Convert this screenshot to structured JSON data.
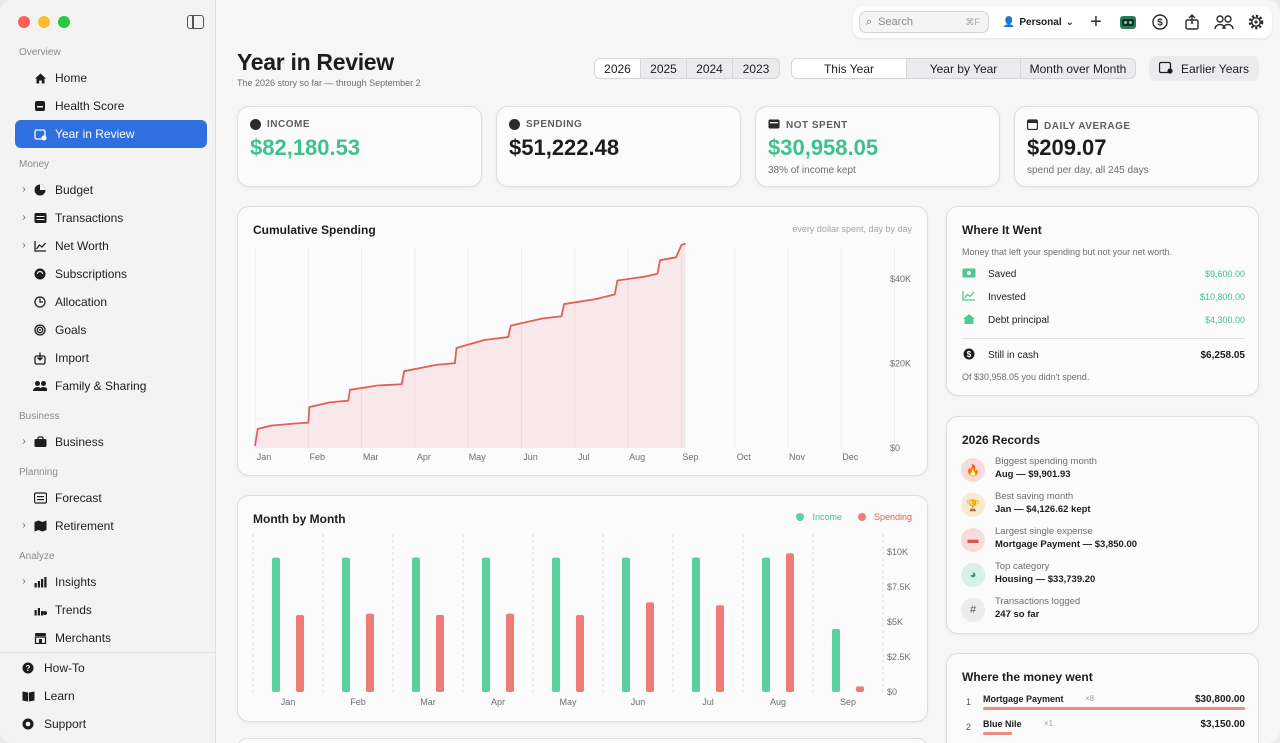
{
  "sidebar": {
    "sections": {
      "overview": "Overview",
      "money": "Money",
      "business": "Business",
      "planning": "Planning",
      "analyze": "Analyze"
    },
    "items": {
      "home": "Home",
      "health": "Health Score",
      "review": "Year in Review",
      "budget": "Budget",
      "transactions": "Transactions",
      "networth": "Net Worth",
      "subscriptions": "Subscriptions",
      "allocation": "Allocation",
      "goals": "Goals",
      "import": "Import",
      "family": "Family & Sharing",
      "business": "Business",
      "forecast": "Forecast",
      "retirement": "Retirement",
      "insights": "Insights",
      "trends": "Trends",
      "merchants": "Merchants"
    },
    "bottom": {
      "howto": "How-To",
      "learn": "Learn",
      "support": "Support"
    }
  },
  "toolbar": {
    "search_placeholder": "Search",
    "search_shortcut": "⌘F",
    "profile": "Personal"
  },
  "header": {
    "title": "Year in Review",
    "subtitle": "The 2026 story so far — through September 2",
    "years": [
      "2026",
      "2025",
      "2024",
      "2023"
    ],
    "selected_year": "2026",
    "views": [
      "This Year",
      "Year by Year",
      "Month over Month"
    ],
    "selected_view": "This Year",
    "earlier_years": "Earlier Years"
  },
  "stats": [
    {
      "label": "INCOME",
      "value": "$82,180.53",
      "sub": "",
      "color": "#3ec28b"
    },
    {
      "label": "SPENDING",
      "value": "$51,222.48",
      "sub": "",
      "color": "#1d1d1f"
    },
    {
      "label": "NOT SPENT",
      "value": "$30,958.05",
      "sub": "38% of income kept",
      "color": "#3ec28b"
    },
    {
      "label": "DAILY AVERAGE",
      "value": "$209.07",
      "sub": "spend per day, all 245 days",
      "color": "#1d1d1f"
    }
  ],
  "cumulative": {
    "title": "Cumulative Spending",
    "note": "every dollar spent, day by day"
  },
  "monthly": {
    "title": "Month by Month",
    "legend_income": "Income",
    "legend_spending": "Spending"
  },
  "chart_data": [
    {
      "type": "area",
      "title": "Cumulative Spending",
      "x_ticks": [
        "Jan",
        "Feb",
        "Mar",
        "Apr",
        "May",
        "Jun",
        "Jul",
        "Aug",
        "Sep",
        "Oct",
        "Nov",
        "Dec"
      ],
      "y_ticks": [
        "$0",
        "$20K",
        "$40K"
      ],
      "ylim": [
        0,
        50000
      ],
      "x_unit": "month",
      "series": [
        {
          "values": [
            [
              0,
              500
            ],
            [
              0.05,
              4500
            ],
            [
              0.3,
              5300
            ],
            [
              0.75,
              5800
            ],
            [
              1.0,
              6000
            ],
            [
              1.02,
              9700
            ],
            [
              1.4,
              10800
            ],
            [
              1.75,
              11200
            ],
            [
              1.78,
              13800
            ],
            [
              2.3,
              14800
            ],
            [
              2.75,
              15100
            ],
            [
              2.8,
              18200
            ],
            [
              3.4,
              19700
            ],
            [
              3.75,
              20100
            ],
            [
              3.78,
              23700
            ],
            [
              4.3,
              25600
            ],
            [
              4.75,
              26300
            ],
            [
              4.8,
              29000
            ],
            [
              5.4,
              30700
            ],
            [
              5.75,
              31200
            ],
            [
              5.8,
              34100
            ],
            [
              6.4,
              35300
            ],
            [
              6.75,
              36400
            ],
            [
              6.8,
              39700
            ],
            [
              7.3,
              40600
            ],
            [
              7.55,
              41300
            ],
            [
              7.6,
              44500
            ],
            [
              7.9,
              45200
            ],
            [
              8.0,
              48100
            ],
            [
              8.08,
              48400
            ]
          ],
          "color": "#e0605a"
        }
      ]
    },
    {
      "type": "bar",
      "title": "Month by Month",
      "categories": [
        "Jan",
        "Feb",
        "Mar",
        "Apr",
        "May",
        "Jun",
        "Jul",
        "Aug",
        "Sep"
      ],
      "y_ticks": [
        "$0",
        "$2.5K",
        "$5K",
        "$7.5K",
        "$10K"
      ],
      "ylim": [
        0,
        11000
      ],
      "series": [
        {
          "name": "Income",
          "color": "#5ccf9f",
          "values": [
            9600,
            9600,
            9600,
            9600,
            9600,
            9600,
            9600,
            9600,
            4500
          ]
        },
        {
          "name": "Spending",
          "color": "#ee7b76",
          "values": [
            5500,
            5600,
            5500,
            5600,
            5500,
            6400,
            6200,
            9900,
            400
          ]
        }
      ]
    }
  ],
  "where_it_went": {
    "title": "Where It Went",
    "description": "Money that left your spending but not your net worth.",
    "rows": [
      {
        "label": "Saved",
        "amount": "$9,600.00",
        "icon": "cash-icon"
      },
      {
        "label": "Invested",
        "amount": "$10,800.00",
        "icon": "chart-line-icon"
      },
      {
        "label": "Debt principal",
        "amount": "$4,300.00",
        "icon": "house-icon"
      }
    ],
    "cash": {
      "label": "Still in cash",
      "amount": "$6,258.05"
    },
    "footer": "Of $30,958.05 you didn't spend."
  },
  "records": {
    "title": "2026 Records",
    "items": [
      {
        "label": "Biggest spending month",
        "value": "Aug — $9,901.93",
        "icon": "flame-icon",
        "color": "#f8dcda"
      },
      {
        "label": "Best saving month",
        "value": "Jan — $4,126.62 kept",
        "icon": "trophy-icon",
        "color": "#f6ead0"
      },
      {
        "label": "Largest single expense",
        "value": "Mortgage Payment — $3,850.00",
        "icon": "card-icon",
        "color": "#f8dcda"
      },
      {
        "label": "Top category",
        "value": "Housing — $33,739.20",
        "icon": "pie-icon",
        "color": "#d7f1e6"
      },
      {
        "label": "Transactions logged",
        "value": "247 so far",
        "icon": "hash-icon",
        "color": "#ececee"
      }
    ]
  },
  "money_went": {
    "title": "Where the money went",
    "rows": [
      {
        "rank": "1",
        "name": "Mortgage Payment",
        "count": "×8",
        "amount": "$30,800.00",
        "share": 1.0
      },
      {
        "rank": "2",
        "name": "Blue Nile",
        "count": "×1",
        "amount": "$3,150.00",
        "share": 0.11
      }
    ]
  }
}
